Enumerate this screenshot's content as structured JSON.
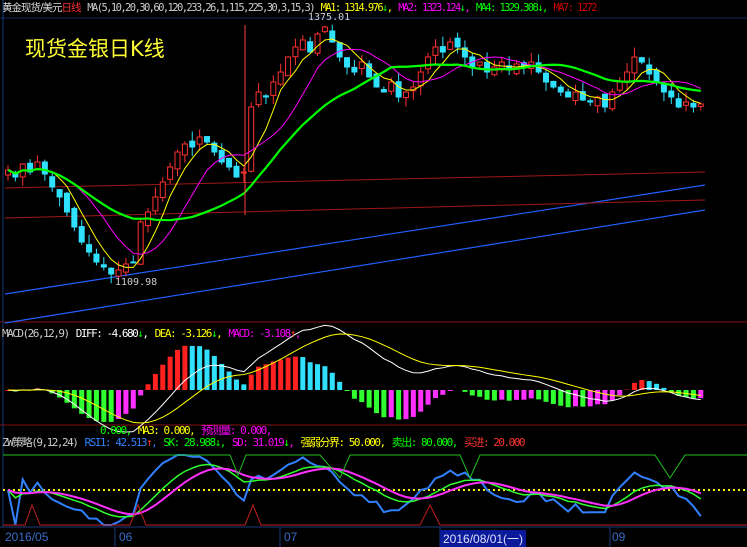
{
  "header": {
    "title": "黄金现货/美元",
    "period": "日线",
    "ma_params": "MA(5,10,20,30,60,120,233,26,1,115,225,30,3,15,3)",
    "ma": [
      {
        "label": "MA1: 1314.976",
        "arrow": "↓",
        "color": "#ffff00"
      },
      {
        "label": "MA2: 1323.124",
        "arrow": "↓",
        "color": "#ff00ff"
      },
      {
        "label": "MA4: 1329.308",
        "arrow": "↓",
        "color": "#00ff00"
      },
      {
        "label": "MA7: 1272",
        "arrow": "",
        "color": "#c00000"
      }
    ]
  },
  "overlay_title": "现货金银日K线",
  "price_marks": {
    "high": "1375.01",
    "low": "1109.98"
  },
  "macd": {
    "label": "MACD(26,12,9)",
    "diff": "DIFF: -4.680",
    "diff_arrow": "↓",
    "dea": "DEA: -3.126",
    "dea_arrow": "↓",
    "macd": "MACD: -3.108",
    "macd_arrow": "↑"
  },
  "zw": {
    "label": "ZW策略(9,12,24)",
    "line1": [
      "0.000,",
      "MA3: 0.000,",
      "预测量: 0.000,"
    ],
    "rsi1": "RSI1: 42.513",
    "rsi1_arrow": "↑",
    "sk": "SK: 28.988",
    "sk_arrow": "↓",
    "sd": "SD: 31.019",
    "sd_arrow": "↓",
    "boundary": "强弱分界: 50.000,",
    "sell": "卖出: 80.000,",
    "buy": "买进: 20.000"
  },
  "xaxis": {
    "labels": [
      "2016/05",
      "06",
      "07",
      "09"
    ],
    "cursor_date": "2016/08/01(一)"
  },
  "colors": {
    "up": "#ff3030",
    "down": "#30e0ff",
    "ma5": "#ffff00",
    "ma10": "#ff00ff",
    "ma20": "#00ff00",
    "long": "#2060ff"
  },
  "closes": [
    1222,
    1215,
    1228,
    1220,
    1230,
    1218,
    1205,
    1195,
    1180,
    1165,
    1150,
    1140,
    1130,
    1125,
    1118,
    1122,
    1128,
    1130,
    1170,
    1180,
    1195,
    1210,
    1225,
    1240,
    1248,
    1245,
    1255,
    1250,
    1240,
    1230,
    1225,
    1215,
    1220,
    1285,
    1300,
    1295,
    1310,
    1320,
    1335,
    1345,
    1352,
    1340,
    1358,
    1365,
    1350,
    1335,
    1325,
    1320,
    1330,
    1315,
    1305,
    1300,
    1310,
    1295,
    1300,
    1305,
    1320,
    1335,
    1345,
    1340,
    1350,
    1345,
    1335,
    1325,
    1330,
    1320,
    1325,
    1330,
    1322,
    1328,
    1325,
    1330,
    1320,
    1310,
    1305,
    1300,
    1295,
    1300,
    1292,
    1290,
    1295,
    1285,
    1300,
    1310,
    1320,
    1335,
    1330,
    1318,
    1310,
    1300,
    1295,
    1285,
    1290,
    1285,
    1288
  ]
}
